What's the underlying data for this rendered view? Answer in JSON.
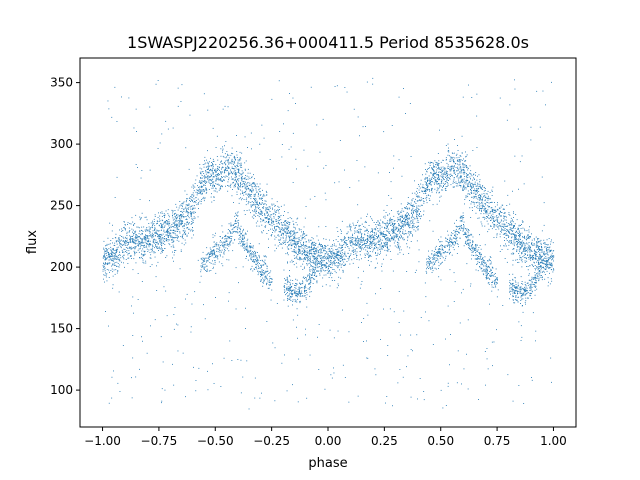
{
  "chart_data": {
    "type": "scatter",
    "title": "1SWASPJ220256.36+000411.5 Period 8535628.0s",
    "xlabel": "phase",
    "ylabel": "flux",
    "xlim": [
      -1.1,
      1.1
    ],
    "ylim": [
      70,
      370
    ],
    "xticks": [
      -1.0,
      -0.75,
      -0.5,
      -0.25,
      0.0,
      0.25,
      0.5,
      0.75,
      1.0
    ],
    "xtick_labels": [
      "−1.00",
      "−0.75",
      "−0.50",
      "−0.25",
      "0.00",
      "0.25",
      "0.50",
      "0.75",
      "1.00"
    ],
    "yticks": [
      100,
      150,
      200,
      250,
      300,
      350
    ],
    "ytick_labels": [
      "100",
      "150",
      "200",
      "250",
      "300",
      "350"
    ],
    "grid": false,
    "point_color": "#1f77b4",
    "series": [
      {
        "phase_trend": [
          [
            0.0,
            205
          ],
          [
            0.05,
            210
          ],
          [
            0.1,
            220
          ],
          [
            0.15,
            222
          ],
          [
            0.2,
            222
          ],
          [
            0.25,
            225
          ],
          [
            0.3,
            230
          ],
          [
            0.35,
            238
          ],
          [
            0.4,
            248
          ],
          [
            0.43,
            265
          ],
          [
            0.46,
            272
          ],
          [
            0.5,
            275
          ],
          [
            0.55,
            280
          ],
          [
            0.58,
            282
          ],
          [
            0.62,
            270
          ],
          [
            0.66,
            260
          ],
          [
            0.7,
            248
          ],
          [
            0.75,
            240
          ],
          [
            0.8,
            230
          ],
          [
            0.85,
            220
          ],
          [
            0.9,
            212
          ],
          [
            0.95,
            208
          ],
          [
            1.0,
            207
          ]
        ],
        "secondary_branches": [
          [
            [
              0.43,
              200
            ],
            [
              0.5,
              212
            ],
            [
              0.57,
              225
            ],
            [
              0.6,
              240
            ]
          ],
          [
            [
              0.6,
              230
            ],
            [
              0.65,
              212
            ],
            [
              0.7,
              200
            ],
            [
              0.75,
              190
            ]
          ],
          [
            [
              0.8,
              185
            ],
            [
              0.86,
              178
            ],
            [
              0.9,
              185
            ],
            [
              0.95,
              200
            ]
          ]
        ],
        "scatter_sd": 8
      }
    ]
  }
}
